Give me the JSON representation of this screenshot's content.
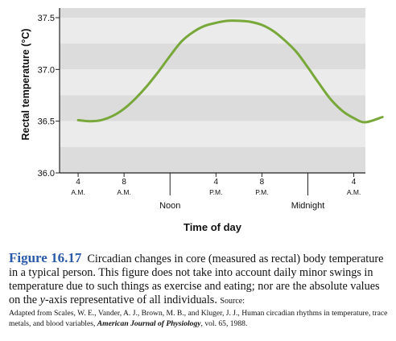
{
  "chart_data": {
    "type": "line",
    "ylabel": "Rectal temperature (°C)",
    "xlabel": "Time of day",
    "ylim": [
      36.0,
      37.6
    ],
    "yticks": [
      "37.5",
      "37.0",
      "36.5",
      "36.0"
    ],
    "xticks": [
      {
        "hour": 4,
        "line1": "4",
        "line2": "A.M."
      },
      {
        "hour": 8,
        "line1": "8",
        "line2": "A.M."
      },
      {
        "hour": 16,
        "line1": "4",
        "line2": "P.M."
      },
      {
        "hour": 20,
        "line1": "8",
        "line2": "P.M."
      },
      {
        "hour": 28,
        "line1": "4",
        "line2": "A.M."
      }
    ],
    "markers": [
      {
        "hour": 12,
        "label": "Noon"
      },
      {
        "hour": 24,
        "label": "Midnight"
      }
    ],
    "xlim": [
      0,
      32
    ],
    "grid": "horizontal bands",
    "series": [
      {
        "color": "#79a83a",
        "x": [
          4,
          5,
          6,
          7,
          8,
          9,
          10,
          11,
          12,
          13,
          14,
          15,
          16,
          17,
          18,
          19,
          20,
          21,
          22,
          23,
          24,
          25,
          26,
          27,
          28,
          29,
          30.5
        ],
        "y": [
          36.51,
          36.5,
          36.51,
          36.55,
          36.62,
          36.72,
          36.84,
          36.98,
          37.13,
          37.27,
          37.36,
          37.42,
          37.45,
          37.47,
          37.47,
          37.46,
          37.43,
          37.37,
          37.28,
          37.17,
          37.02,
          36.86,
          36.71,
          36.6,
          36.53,
          36.49,
          36.54
        ]
      }
    ]
  },
  "caption": {
    "figure_label": "Figure 16.17",
    "text": "Circadian changes in core (measured as rectal) body temperature in a typical person. This figure does not take into account daily minor swings in temperature due to such things as exercise and eating; nor are the absolute values on the ",
    "axis_ref": "y",
    "text_after": "-axis representative of all individuals.",
    "source_label": "Source:",
    "source_text": "Adapted from Scales, W. E., Vander, A. J., Brown, M. B., and Kluger, J. J., Human circadian rhythms in temperature, trace metals, and blood variables, ",
    "journal": "American Journal of Physiology",
    "source_end": ", vol. 65, 1988."
  }
}
